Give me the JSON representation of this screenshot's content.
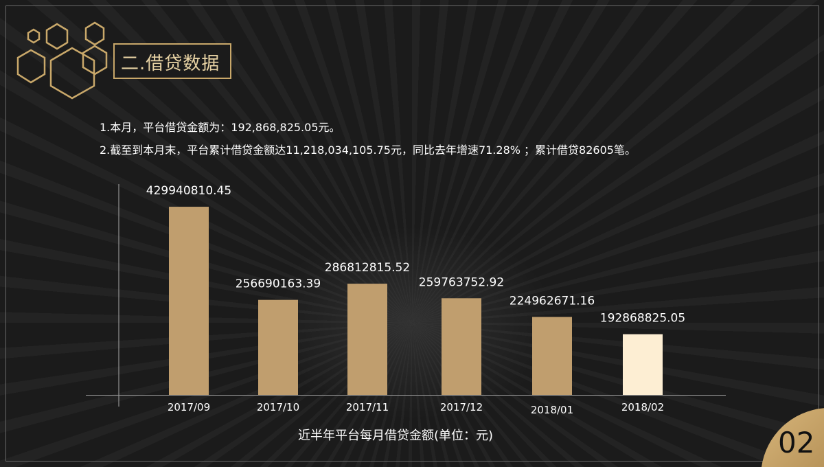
{
  "title": "二.借贷数据",
  "summary": {
    "line1": "1.本月，平台借贷金额为：192,868,825.05元。",
    "line2": "2.截至到本月末，平台累计借贷金额达11,218,034,105.75元，同比去年增速71.28% ；累计借贷82605笔。"
  },
  "page_number": "02",
  "colors": {
    "bar": "#c09e6e",
    "highlight": "#fdeed3",
    "gold": "#c9a86a"
  },
  "chart_data": {
    "type": "bar",
    "title": "近半年平台每月借贷金额(单位：元)",
    "categories": [
      "2017/09",
      "2017/10",
      "2017/11",
      "2017/12",
      "2018/01",
      "2018/02"
    ],
    "values": [
      429940810.45,
      256690163.39,
      286812815.52,
      259763752.92,
      224962671.16,
      192868825.05
    ],
    "labels": [
      "429940810.45",
      "256690163.39",
      "286812815.52",
      "259763752.92",
      "224962671.16",
      "192868825.05"
    ],
    "xlabel": "近半年平台每月借贷金额(单位：元)",
    "ylabel": "",
    "ylim": [
      80000000,
      430000000
    ],
    "grid": false
  }
}
